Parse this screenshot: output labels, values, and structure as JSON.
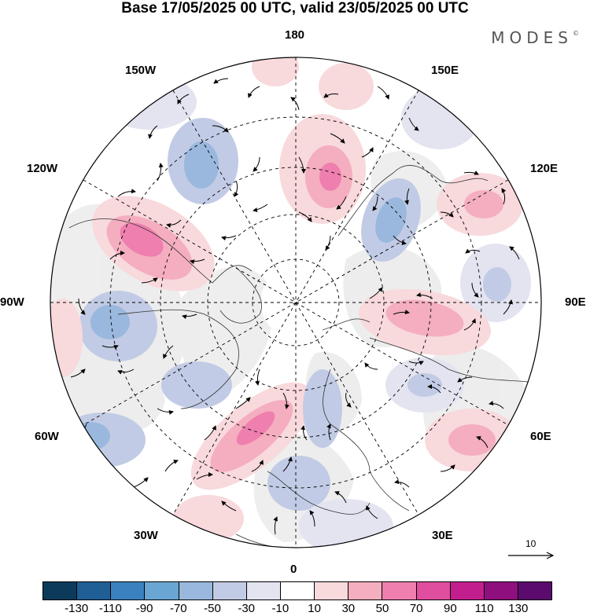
{
  "title": "Base 17/05/2025 00 UTC, valid 23/05/2025 00 UTC",
  "brand": {
    "text": "MODES",
    "mark": "©"
  },
  "longitude_labels": {
    "top": "180",
    "bottom": "0",
    "left": "90W",
    "right": "90E",
    "upper_left_outer": "150W",
    "upper_left_inner": "120W",
    "upper_right_outer": "150E",
    "upper_right_inner": "120E",
    "lower_left_inner": "60W",
    "lower_left_outer": "30W",
    "lower_right_inner": "60E",
    "lower_right_outer": "30E"
  },
  "reference_vector": {
    "value": "10"
  },
  "colorbar": {
    "colors": [
      "#0c3a5b",
      "#1f5f96",
      "#3a82bf",
      "#6aa6d3",
      "#9ab8dd",
      "#c2cbe5",
      "#e3e4f0",
      "#ffffff",
      "#f8d9dc",
      "#f4aebf",
      "#ee7fae",
      "#e04ea0",
      "#c31e8e",
      "#8f0f7e",
      "#5b0b6e"
    ],
    "tick_labels": [
      "-130",
      "-110",
      "-90",
      "-70",
      "-50",
      "-30",
      "-10",
      "10",
      "30",
      "50",
      "70",
      "90",
      "110",
      "130"
    ]
  },
  "map": {
    "projection": "north-polar-stereographic",
    "field": "anomaly-shading-with-wind-vectors",
    "grid": true
  }
}
